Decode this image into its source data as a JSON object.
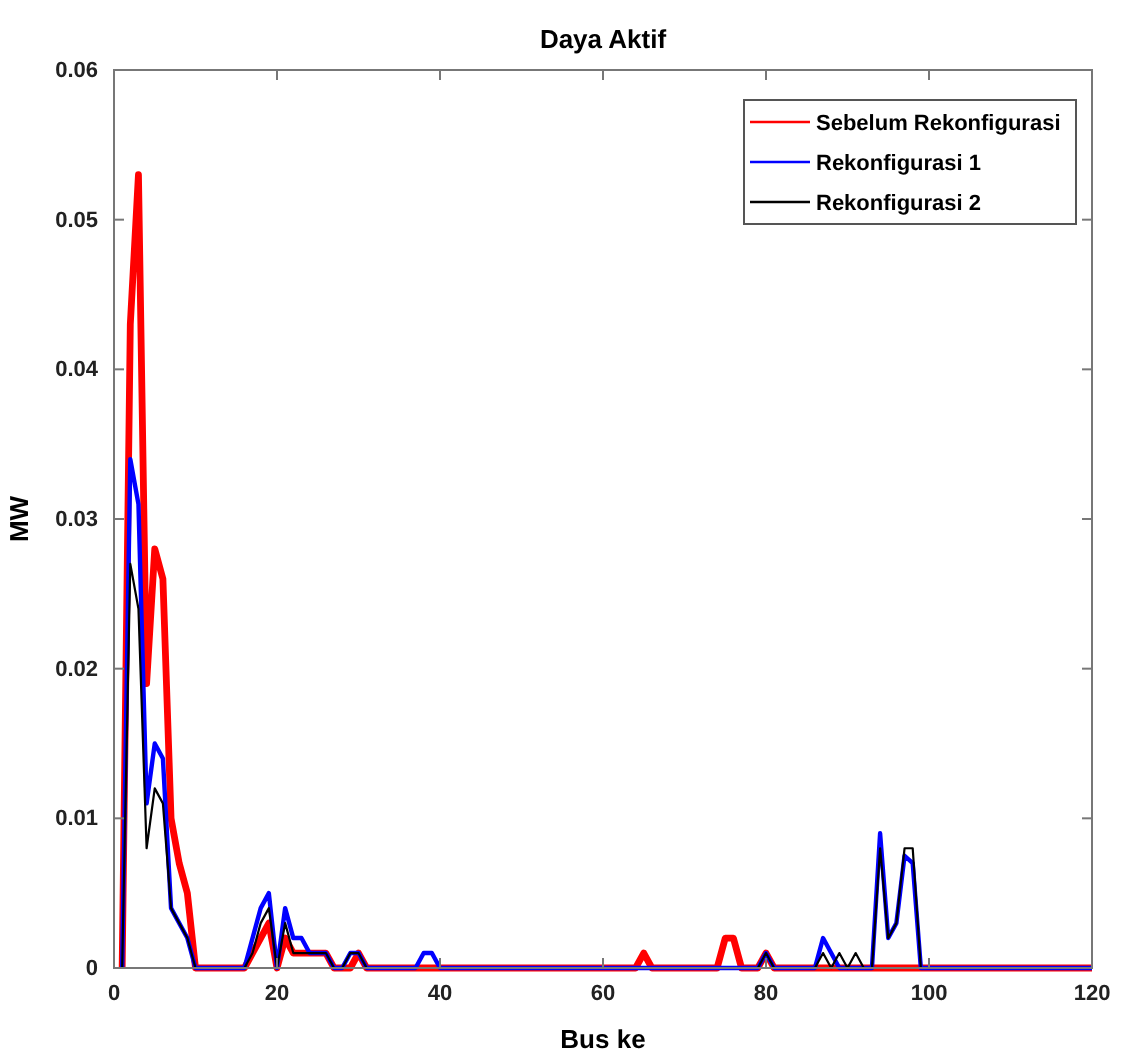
{
  "chart_data": {
    "type": "line",
    "title": "Daya Aktif",
    "xlabel": "Bus ke",
    "ylabel": "MW",
    "x": [
      1,
      2,
      3,
      4,
      5,
      6,
      7,
      8,
      9,
      10,
      11,
      12,
      13,
      14,
      15,
      16,
      17,
      18,
      19,
      20,
      21,
      22,
      23,
      24,
      25,
      26,
      27,
      28,
      29,
      30,
      31,
      32,
      33,
      34,
      35,
      36,
      37,
      38,
      39,
      40,
      41,
      42,
      43,
      44,
      45,
      46,
      47,
      48,
      49,
      50,
      51,
      52,
      53,
      54,
      55,
      56,
      57,
      58,
      59,
      60,
      61,
      62,
      63,
      64,
      65,
      66,
      67,
      68,
      69,
      70,
      71,
      72,
      73,
      74,
      75,
      76,
      77,
      78,
      79,
      80,
      81,
      82,
      83,
      84,
      85,
      86,
      87,
      88,
      89,
      90,
      91,
      92,
      93,
      94,
      95,
      96,
      97,
      98,
      99,
      100,
      101,
      102,
      103,
      104,
      105,
      106,
      107,
      108,
      109,
      110,
      111,
      112,
      113,
      114,
      115,
      116,
      117,
      118,
      119,
      120
    ],
    "series": [
      {
        "name": "Sebelum Rekonfigurasi",
        "color": "#ff0000",
        "values": [
          0,
          0.043,
          0.053,
          0.019,
          0.028,
          0.026,
          0.01,
          0.007,
          0.005,
          0,
          0,
          0,
          0,
          0,
          0,
          0,
          0.001,
          0.002,
          0.003,
          0,
          0.002,
          0.001,
          0.001,
          0.001,
          0.001,
          0.001,
          0,
          0,
          0,
          0.001,
          0,
          0,
          0,
          0,
          0,
          0,
          0,
          0,
          0,
          0,
          0,
          0,
          0,
          0,
          0,
          0,
          0,
          0,
          0,
          0,
          0,
          0,
          0,
          0,
          0,
          0,
          0,
          0,
          0,
          0,
          0,
          0,
          0,
          0,
          0.001,
          0,
          0,
          0,
          0,
          0,
          0,
          0,
          0,
          0,
          0.002,
          0.002,
          0,
          0,
          0,
          0.001,
          0,
          0,
          0,
          0,
          0,
          0,
          0,
          0,
          0,
          0,
          0,
          0,
          0,
          0,
          0,
          0,
          0,
          0,
          0,
          0,
          0,
          0,
          0,
          0,
          0,
          0,
          0,
          0,
          0,
          0,
          0,
          0,
          0,
          0,
          0,
          0,
          0,
          0,
          0,
          0
        ]
      },
      {
        "name": "Rekonfigurasi 1",
        "color": "#0000ff",
        "values": [
          0,
          0.034,
          0.031,
          0.011,
          0.015,
          0.014,
          0.004,
          0.003,
          0.002,
          0,
          0,
          0,
          0,
          0,
          0,
          0,
          0.002,
          0.004,
          0.005,
          0,
          0.004,
          0.002,
          0.002,
          0.001,
          0.001,
          0.001,
          0,
          0,
          0.001,
          0.001,
          0,
          0,
          0,
          0,
          0,
          0,
          0,
          0.001,
          0.001,
          0,
          0,
          0,
          0,
          0,
          0,
          0,
          0,
          0,
          0,
          0,
          0,
          0,
          0,
          0,
          0,
          0,
          0,
          0,
          0,
          0,
          0,
          0,
          0,
          0,
          0,
          0,
          0,
          0,
          0,
          0,
          0,
          0,
          0,
          0,
          0,
          0,
          0,
          0,
          0,
          0.001,
          0,
          0,
          0,
          0,
          0,
          0,
          0.002,
          0.001,
          0,
          0,
          0,
          0,
          0,
          0.009,
          0.002,
          0.003,
          0.0075,
          0.007,
          0,
          0,
          0,
          0,
          0,
          0,
          0,
          0,
          0,
          0,
          0,
          0,
          0,
          0,
          0,
          0,
          0,
          0,
          0,
          0,
          0,
          0
        ]
      },
      {
        "name": "Rekonfigurasi 2",
        "color": "#000000",
        "values": [
          0,
          0.027,
          0.024,
          0.008,
          0.012,
          0.011,
          0.004,
          0.003,
          0.002,
          0,
          0,
          0,
          0,
          0,
          0,
          0,
          0.001,
          0.003,
          0.004,
          0,
          0.003,
          0.001,
          0.001,
          0.001,
          0.001,
          0.001,
          0,
          0,
          0.001,
          0.001,
          0,
          0,
          0,
          0,
          0,
          0,
          0,
          0,
          0,
          0,
          0,
          0,
          0,
          0,
          0,
          0,
          0,
          0,
          0,
          0,
          0,
          0,
          0,
          0,
          0,
          0,
          0,
          0,
          0,
          0,
          0,
          0,
          0,
          0,
          0,
          0,
          0,
          0,
          0,
          0,
          0,
          0,
          0,
          0,
          0,
          0,
          0,
          0,
          0,
          0.001,
          0,
          0,
          0,
          0,
          0,
          0,
          0.001,
          0,
          0.001,
          0,
          0.001,
          0,
          0,
          0.008,
          0.002,
          0.003,
          0.008,
          0.008,
          0,
          0,
          0,
          0,
          0,
          0,
          0,
          0,
          0,
          0,
          0,
          0,
          0,
          0,
          0,
          0,
          0,
          0,
          0,
          0,
          0,
          0
        ]
      }
    ],
    "xlim": [
      0,
      120
    ],
    "xticks": [
      0,
      20,
      40,
      60,
      80,
      100,
      120
    ],
    "ylim": [
      0,
      0.06
    ],
    "yticks": [
      0,
      0.01,
      0.02,
      0.03,
      0.04,
      0.05,
      0.06
    ],
    "grid": false,
    "legend": "top right",
    "line_style": "solid"
  }
}
